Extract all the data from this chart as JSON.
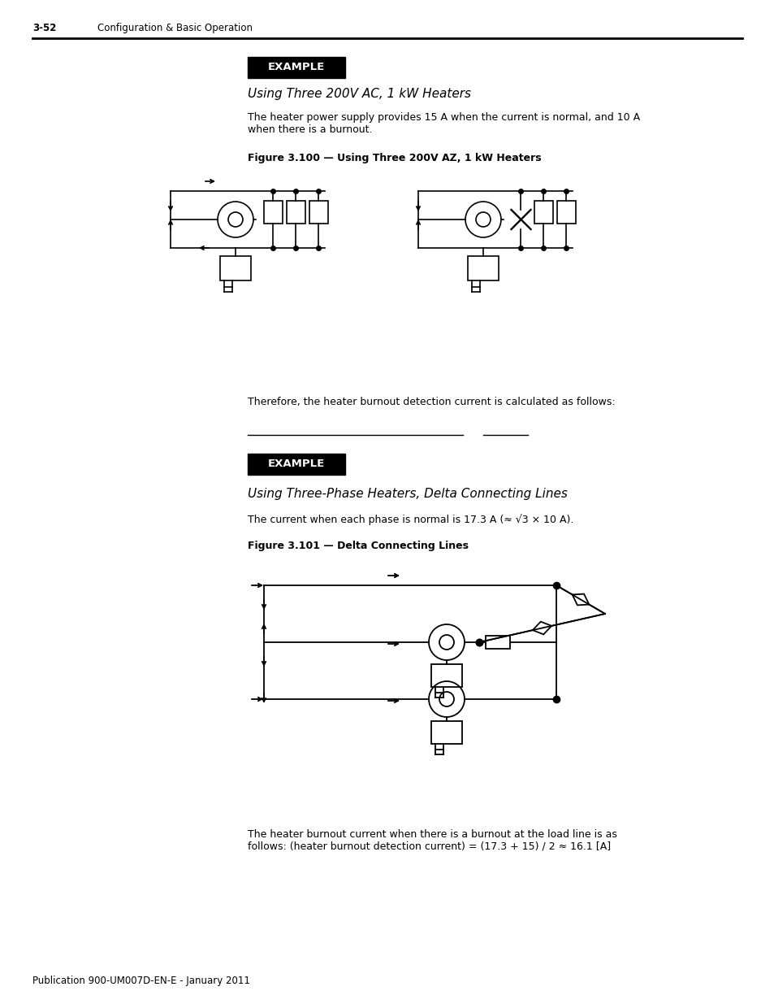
{
  "bg_color": "#ffffff",
  "page_num": "3-52",
  "header_text": "Configuration & Basic Operation",
  "example_label": "EXAMPLE",
  "title1_italic": "Using Three 200V AC, 1 kW Heaters",
  "body1": "The heater power supply provides 15 A when the current is normal, and 10 A\nwhen there is a burnout.",
  "fig100_label": "Figure 3.100 — Using Three 200V AZ, 1 kW Heaters",
  "body2": "Therefore, the heater burnout detection current is calculated as follows:",
  "example_label2": "EXAMPLE",
  "title2_italic": "Using Three-Phase Heaters, Delta Connecting Lines",
  "body3": "The current when each phase is normal is 17.3 A (≈ √3 × 10 A).",
  "fig101_label": "Figure 3.101 — Delta Connecting Lines",
  "body4": "The heater burnout current when there is a burnout at the load line is as\nfollows: (heater burnout detection current) = (17.3 + 15) / 2 ≈ 16.1 [A]",
  "footer_text": "Publication 900-UM007D-EN-E - January 2011"
}
